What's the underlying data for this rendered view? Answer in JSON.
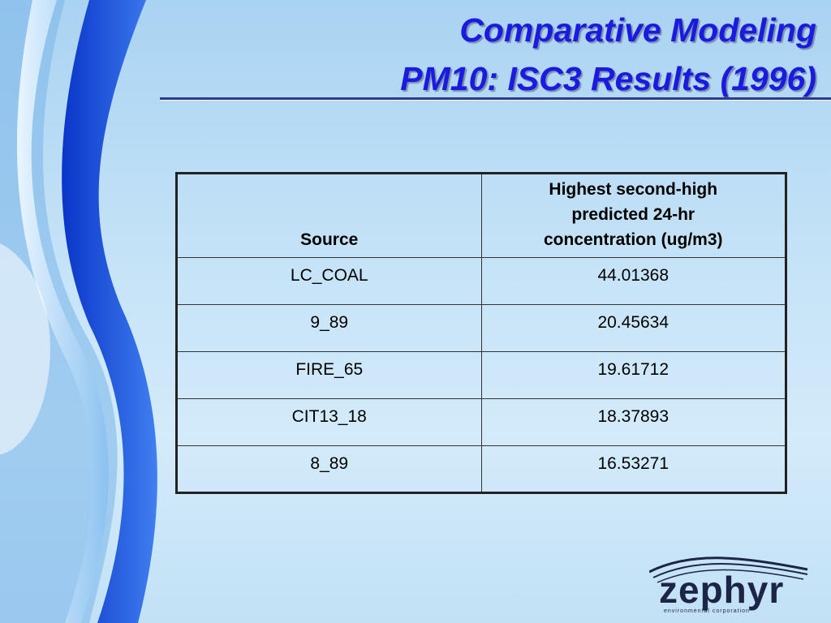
{
  "header": {
    "title_line1": "Comparative Modeling",
    "title_line2": "PM10: ISC3 Results (1996)"
  },
  "table": {
    "header": [
      "Source",
      "Highest second-high predicted 24-hr concentration (ug/m3)"
    ],
    "rows": [
      [
        "LC_COAL",
        "44.01368"
      ],
      [
        "9_89",
        "20.45634"
      ],
      [
        "FIRE_65",
        "19.61712"
      ],
      [
        "CIT13_18",
        "18.37893"
      ],
      [
        "8_89",
        "16.53271"
      ]
    ]
  },
  "logo": {
    "name": "zephyr",
    "tagline": "environmental corporation"
  }
}
